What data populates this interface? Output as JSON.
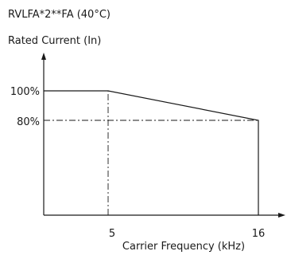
{
  "chart_data": {
    "type": "line",
    "title": "RVLFA*2**FA (40°C)",
    "ylabel": "Rated Current (In)",
    "xlabel": "Carrier Frequency (kHz)",
    "x_ticks": [
      "5",
      "16"
    ],
    "y_ticks": [
      "100%",
      "80%"
    ],
    "xlim": [
      0,
      16
    ],
    "ylim": [
      0,
      100
    ],
    "grid": false,
    "series": [
      {
        "x": [
          0,
          5,
          16,
          16
        ],
        "y": [
          100,
          100,
          80,
          0
        ]
      }
    ],
    "reference_lines": [
      {
        "type": "vertical",
        "x": 5,
        "from_y": 0,
        "to_y": 100
      },
      {
        "type": "horizontal",
        "y": 80,
        "from_x": 0,
        "to_x": 16
      }
    ]
  }
}
